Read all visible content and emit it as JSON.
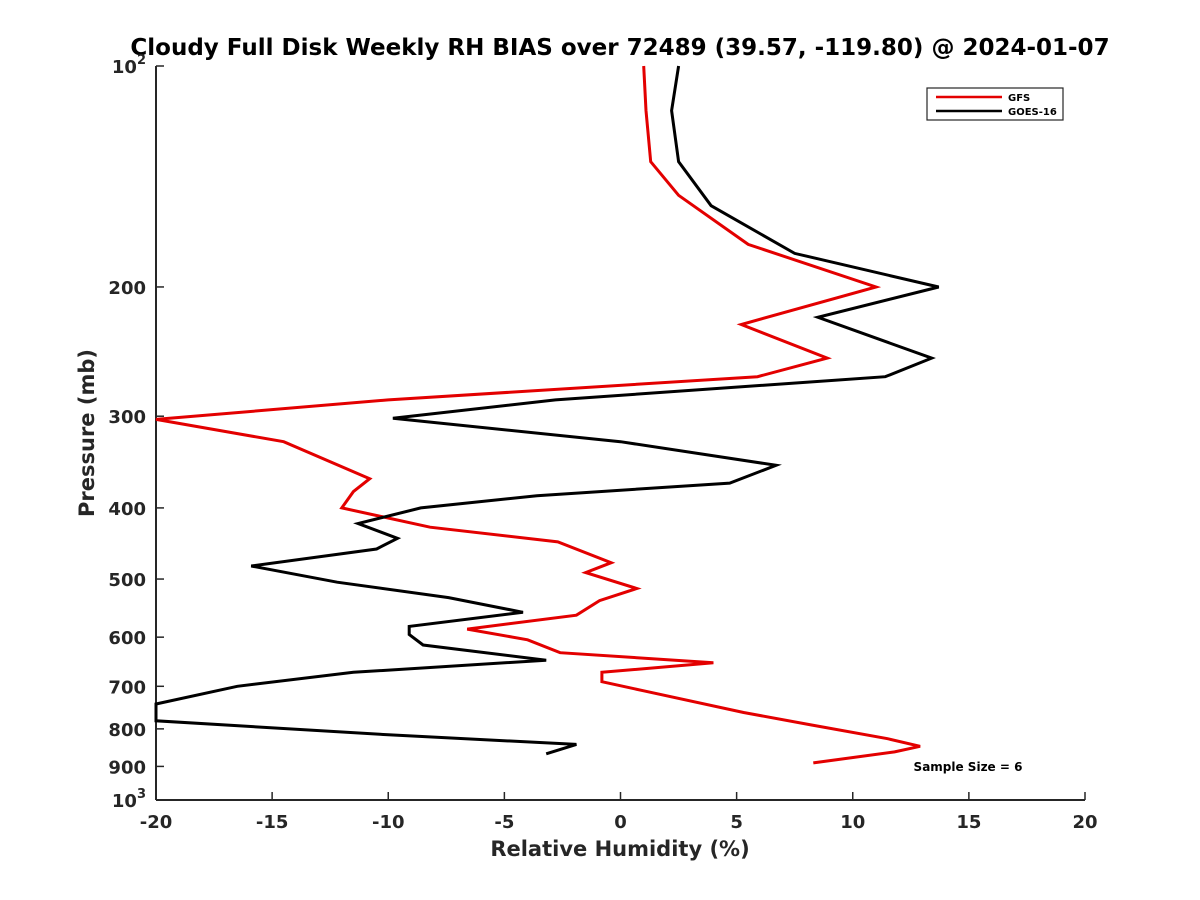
{
  "chart_data": {
    "type": "line",
    "title": "Cloudy Full Disk Weekly RH BIAS over 72489 (39.57, -119.80) @ 2024-01-07",
    "xlabel": "Relative Humidity (%)",
    "ylabel": "Pressure (mb)",
    "xlim": [
      -20,
      20
    ],
    "ylim": [
      100,
      1000
    ],
    "y_scale": "log",
    "y_reversed": true,
    "x_ticks": [
      -20,
      -15,
      -10,
      -5,
      0,
      5,
      10,
      15,
      20
    ],
    "x_tick_labels": [
      "-20",
      "-15",
      "-10",
      "-5",
      "0",
      "5",
      "10",
      "15",
      "20"
    ],
    "y_ticks": [
      100,
      200,
      300,
      400,
      500,
      600,
      700,
      800,
      900,
      1000
    ],
    "y_tick_labels": [
      {
        "base": "10",
        "exp": "2"
      },
      {
        "base": "200",
        "exp": ""
      },
      {
        "base": "300",
        "exp": ""
      },
      {
        "base": "400",
        "exp": ""
      },
      {
        "base": "500",
        "exp": ""
      },
      {
        "base": "600",
        "exp": ""
      },
      {
        "base": "700",
        "exp": ""
      },
      {
        "base": "800",
        "exp": ""
      },
      {
        "base": "900",
        "exp": ""
      },
      {
        "base": "10",
        "exp": "3"
      }
    ],
    "grid": false,
    "legend_position": "top-right",
    "annotation": "Sample Size = 6",
    "series": [
      {
        "name": "GFS",
        "color": "#e30000",
        "points": [
          [
            1.0,
            100
          ],
          [
            1.1,
            115
          ],
          [
            1.3,
            135
          ],
          [
            2.5,
            150
          ],
          [
            5.5,
            175
          ],
          [
            11.0,
            200
          ],
          [
            5.2,
            225
          ],
          [
            8.9,
            250
          ],
          [
            5.9,
            265
          ],
          [
            -10.0,
            285
          ],
          [
            -20.0,
            303
          ],
          [
            -14.5,
            325
          ],
          [
            -10.8,
            365
          ],
          [
            -11.5,
            380
          ],
          [
            -12.0,
            400
          ],
          [
            -8.2,
            425
          ],
          [
            -2.7,
            445
          ],
          [
            -0.4,
            475
          ],
          [
            -1.5,
            490
          ],
          [
            0.7,
            515
          ],
          [
            -0.9,
            535
          ],
          [
            -1.9,
            560
          ],
          [
            -6.6,
            585
          ],
          [
            -4.0,
            605
          ],
          [
            -2.6,
            630
          ],
          [
            4.0,
            650
          ],
          [
            -0.8,
            670
          ],
          [
            -0.8,
            690
          ],
          [
            1.0,
            710
          ],
          [
            5.3,
            760
          ],
          [
            8.2,
            790
          ],
          [
            11.5,
            825
          ],
          [
            12.9,
            845
          ],
          [
            11.8,
            860
          ],
          [
            8.3,
            890
          ]
        ]
      },
      {
        "name": "GOES-16",
        "color": "#000000",
        "points": [
          [
            2.5,
            100
          ],
          [
            2.2,
            115
          ],
          [
            2.5,
            135
          ],
          [
            3.9,
            155
          ],
          [
            7.5,
            180
          ],
          [
            13.7,
            200
          ],
          [
            8.5,
            220
          ],
          [
            13.4,
            250
          ],
          [
            11.4,
            265
          ],
          [
            -2.8,
            285
          ],
          [
            -9.8,
            302
          ],
          [
            0.0,
            325
          ],
          [
            6.7,
            350
          ],
          [
            4.7,
            370
          ],
          [
            -3.6,
            385
          ],
          [
            -8.6,
            400
          ],
          [
            -11.3,
            420
          ],
          [
            -9.6,
            440
          ],
          [
            -10.5,
            455
          ],
          [
            -15.9,
            480
          ],
          [
            -12.2,
            505
          ],
          [
            -7.4,
            530
          ],
          [
            -4.2,
            555
          ],
          [
            -9.1,
            580
          ],
          [
            -9.1,
            595
          ],
          [
            -8.5,
            615
          ],
          [
            -3.2,
            645
          ],
          [
            -11.5,
            670
          ],
          [
            -16.5,
            700
          ],
          [
            -20.0,
            740
          ],
          [
            -20.0,
            780
          ],
          [
            -10.0,
            815
          ],
          [
            -1.9,
            840
          ],
          [
            -3.2,
            865
          ]
        ]
      }
    ]
  }
}
